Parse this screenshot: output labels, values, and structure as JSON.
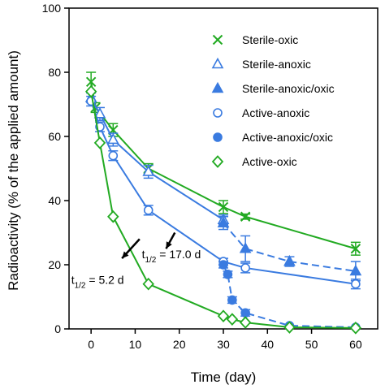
{
  "chart_data": {
    "type": "line",
    "xlabel": "Time (day)",
    "ylabel": "Radioactivity (% of the applied amount)",
    "xlim": [
      -5,
      65
    ],
    "ylim": [
      0,
      100
    ],
    "xticks": [
      0,
      10,
      20,
      30,
      40,
      50,
      60
    ],
    "yticks": [
      0,
      20,
      40,
      60,
      80,
      100
    ],
    "grid": false,
    "legend_position": "top-right",
    "series": [
      {
        "name": "Sterile-oxic",
        "marker": "x",
        "line": "solid",
        "color": "#22aa22",
        "x": [
          0,
          1,
          5,
          13,
          30,
          35,
          60
        ],
        "y": [
          77,
          69,
          62,
          50,
          38,
          35,
          25
        ],
        "err": [
          3,
          1.5,
          2,
          1.5,
          2,
          0.8,
          2
        ]
      },
      {
        "name": "Sterile-anoxic",
        "marker": "triangle-open",
        "line": "solid",
        "color": "#3a7be0",
        "x": [
          0,
          2,
          5,
          13,
          30
        ],
        "y": [
          72,
          67,
          59,
          49,
          34
        ],
        "err": [
          1.5,
          2,
          2,
          2,
          1.5
        ]
      },
      {
        "name": "Sterile-anoxic/oxic",
        "marker": "triangle-filled",
        "line": "dashed",
        "color": "#3a7be0",
        "x": [
          30,
          35,
          45,
          60
        ],
        "y": [
          33,
          25,
          21,
          18
        ],
        "err": [
          2,
          4,
          1.5,
          3
        ]
      },
      {
        "name": "Active-anoxic",
        "marker": "circle-open",
        "line": "solid",
        "color": "#3a7be0",
        "x": [
          0,
          2,
          5,
          13,
          30,
          35,
          60
        ],
        "y": [
          71,
          63,
          54,
          37,
          21,
          19,
          14
        ],
        "err": [
          1.5,
          1.5,
          1.5,
          1.5,
          1,
          1.5,
          1.5
        ]
      },
      {
        "name": "Active-anoxic/oxic",
        "marker": "circle-filled",
        "line": "dashed",
        "color": "#3a7be0",
        "x": [
          30,
          31,
          32,
          35,
          45,
          60
        ],
        "y": [
          20,
          17,
          9,
          5,
          1,
          0.5
        ],
        "err": [
          1,
          1,
          1,
          1,
          0.5,
          0.5
        ]
      },
      {
        "name": "Active-oxic",
        "marker": "diamond-open",
        "line": "solid",
        "color": "#22aa22",
        "x": [
          0,
          2,
          5,
          13,
          30,
          32,
          35,
          45,
          60
        ],
        "y": [
          74,
          58,
          35,
          14,
          4,
          3,
          2,
          0.5,
          0.3
        ],
        "err": [
          0.5,
          0.5,
          0.5,
          0.5,
          0.5,
          0.5,
          0.5,
          0.3,
          0.3
        ]
      }
    ],
    "annotations": [
      {
        "label": "t",
        "sub": "1/2",
        "value": " = 17.0 d",
        "text_at": [
          11.5,
          22
        ],
        "arrow_from": [
          19,
          30
        ],
        "arrow_to": [
          17,
          25
        ]
      },
      {
        "label": "t",
        "sub": "1/2",
        "value": " = 5.2 d",
        "text_at": [
          -4.5,
          14
        ],
        "arrow_from": [
          11,
          28
        ],
        "arrow_to": [
          7,
          22
        ]
      }
    ]
  }
}
